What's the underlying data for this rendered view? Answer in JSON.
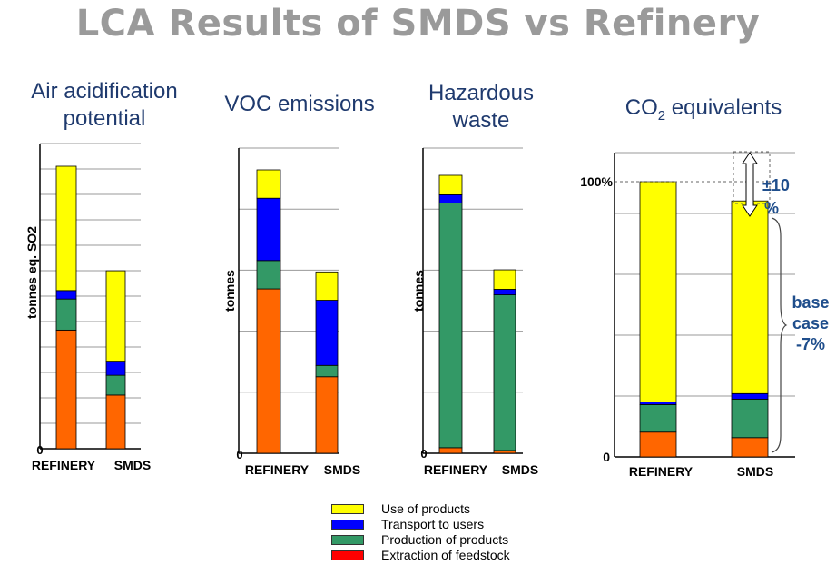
{
  "title": "LCA Results of SMDS vs Refinery",
  "colors": {
    "use": "#ffff00",
    "transport": "#0000ff",
    "production": "#339966",
    "extraction": "#ff6600",
    "title": "#9a9a9a",
    "chart_title": "#1f3a6e",
    "annotation": "#1f4e8c"
  },
  "legend": [
    {
      "label": "Use of products",
      "color": "#ffff00"
    },
    {
      "label": "Transport to users",
      "color": "#0000ff"
    },
    {
      "label": "Production of products",
      "color": "#339966"
    },
    {
      "label": "Extraction of feedstock",
      "color": "#ff0000"
    }
  ],
  "chart_titles": {
    "air_line1": "Air acidification",
    "air_line2": "potential",
    "voc": "VOC emissions",
    "haz_line1": "Hazardous",
    "haz_line2": "waste",
    "co2_main": "CO",
    "co2_sub": "2",
    "co2_rest": " equivalents"
  },
  "chart_data": [
    {
      "type": "bar",
      "title": "Air acidification potential",
      "ylabel": "tonnes eq. SO2",
      "ytick": "0",
      "categories": [
        "REFINERY",
        "SMDS"
      ],
      "ylim": [
        0,
        100
      ],
      "series": [
        {
          "name": "Extraction of feedstock",
          "values": [
            42,
            19
          ]
        },
        {
          "name": "Production of products",
          "values": [
            11,
            7
          ]
        },
        {
          "name": "Transport to users",
          "values": [
            3,
            5
          ]
        },
        {
          "name": "Use of products",
          "values": [
            44,
            32
          ]
        }
      ]
    },
    {
      "type": "bar",
      "title": "VOC emissions",
      "ylabel": "tonnes",
      "ytick": "0",
      "categories": [
        "REFINERY",
        "SMDS"
      ],
      "ylim": [
        0,
        100
      ],
      "series": [
        {
          "name": "Extraction of feedstock",
          "values": [
            58,
            27
          ]
        },
        {
          "name": "Production of products",
          "values": [
            10,
            4
          ]
        },
        {
          "name": "Transport to users",
          "values": [
            22,
            23
          ]
        },
        {
          "name": "Use of products",
          "values": [
            10,
            10
          ]
        }
      ]
    },
    {
      "type": "bar",
      "title": "Hazardous waste",
      "ylabel": "tonnes",
      "ytick": "0",
      "categories": [
        "REFINERY",
        "SMDS"
      ],
      "ylim": [
        0,
        100
      ],
      "series": [
        {
          "name": "Extraction of feedstock",
          "values": [
            2,
            1
          ]
        },
        {
          "name": "Production of products",
          "values": [
            88,
            56
          ]
        },
        {
          "name": "Transport to users",
          "values": [
            3,
            2
          ]
        },
        {
          "name": "Use of products",
          "values": [
            7,
            7
          ]
        }
      ]
    },
    {
      "type": "bar",
      "title": "CO2 equivalents",
      "ylabel": "",
      "yticks": [
        "0",
        "100%"
      ],
      "categories": [
        "REFINERY",
        "SMDS"
      ],
      "ylim": [
        0,
        100
      ],
      "series": [
        {
          "name": "Extraction of feedstock",
          "values": [
            9,
            7
          ]
        },
        {
          "name": "Production of products",
          "values": [
            10,
            14
          ]
        },
        {
          "name": "Transport to users",
          "values": [
            1,
            2
          ]
        },
        {
          "name": "Use of products",
          "values": [
            80,
            70
          ]
        }
      ],
      "annotations": {
        "range": "±10",
        "range_unit": "%",
        "base_line1": "base",
        "base_line2": "case",
        "base_line3": "-7%"
      }
    }
  ]
}
